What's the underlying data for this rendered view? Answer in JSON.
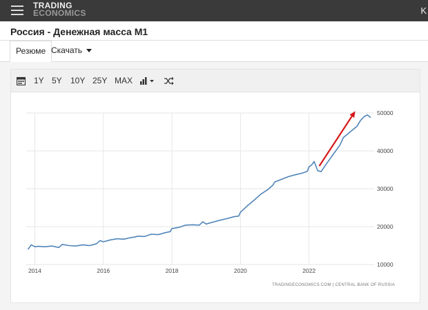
{
  "header": {
    "logo_line1": "TRADING",
    "logo_line2": "ECONOMICS",
    "corner_char": "K"
  },
  "page": {
    "title": "Россия - Денежная масса M1"
  },
  "tabs": {
    "summary": "Резюме",
    "download": "Скачать"
  },
  "toolbar": {
    "ranges": [
      "1Y",
      "5Y",
      "10Y",
      "25Y",
      "MAX"
    ]
  },
  "colors": {
    "line": "#4f84b9",
    "arrow": "#d61a1a",
    "grid": "#e6e6e6"
  },
  "chart_data": {
    "type": "line",
    "series": [
      {
        "x": [
          2013.8,
          2013.9,
          2014.0,
          2014.1,
          2014.3,
          2014.5,
          2014.7,
          2014.8,
          2015.0,
          2015.2,
          2015.4,
          2015.6,
          2015.8,
          2015.9,
          2016.0,
          2016.2,
          2016.4,
          2016.6,
          2016.8,
          2016.95,
          2017.0,
          2017.2,
          2017.4,
          2017.6,
          2017.8,
          2017.95,
          2018.0,
          2018.2,
          2018.4,
          2018.6,
          2018.8,
          2018.9,
          2019.0,
          2019.2,
          2019.4,
          2019.6,
          2019.8,
          2019.95,
          2020.0,
          2020.2,
          2020.4,
          2020.6,
          2020.8,
          2020.95,
          2021.0,
          2021.2,
          2021.4,
          2021.6,
          2021.8,
          2021.95,
          2022.0,
          2022.08,
          2022.15,
          2022.25,
          2022.35,
          2022.5,
          2022.7,
          2022.9,
          2023.0,
          2023.2,
          2023.4,
          2023.5,
          2023.6,
          2023.7,
          2023.8
        ],
        "values": [
          14000,
          15200,
          14700,
          14800,
          14700,
          14900,
          14500,
          15300,
          15000,
          14900,
          15200,
          15000,
          15500,
          16300,
          16000,
          16500,
          16800,
          16700,
          17100,
          17300,
          17500,
          17400,
          18000,
          17900,
          18400,
          18700,
          19500,
          19800,
          20400,
          20500,
          20400,
          21300,
          20700,
          21200,
          21700,
          22100,
          22600,
          22800,
          23800,
          25500,
          27000,
          28600,
          29800,
          31000,
          31800,
          32500,
          33200,
          33700,
          34100,
          34600,
          35800,
          36300,
          37200,
          34800,
          34500,
          36500,
          39000,
          41500,
          43500,
          45000,
          46500,
          48000,
          49000,
          49500,
          48800
        ]
      }
    ],
    "x_ticks": [
      "2014",
      "2016",
      "2018",
      "2020",
      "2022"
    ],
    "y_ticks": [
      "10000",
      "20000",
      "30000",
      "40000",
      "50000"
    ],
    "xlim": [
      2013.75,
      2023.9
    ],
    "ylim": [
      10000,
      50000
    ],
    "grid": true,
    "annotation_arrow": {
      "from": [
        2022.3,
        36000
      ],
      "to": [
        2023.35,
        50500
      ]
    },
    "source": "TRADINGECONOMICS.COM | CENTRAL BANK OF RUSSIA"
  }
}
